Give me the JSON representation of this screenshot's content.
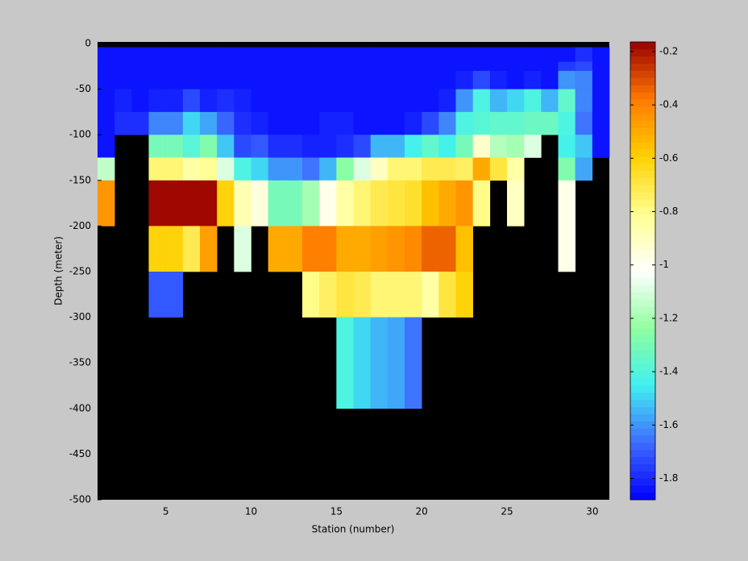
{
  "chart_data": {
    "type": "heatmap",
    "xlabel": "Station (number)",
    "ylabel": "Depth (meter)",
    "xlim": [
      1,
      31
    ],
    "ylim": [
      -500,
      0
    ],
    "xticks": [
      5,
      10,
      15,
      20,
      25,
      30
    ],
    "yticks": [
      0,
      -50,
      -100,
      -150,
      -200,
      -250,
      -300,
      -350,
      -400,
      -450,
      -500
    ],
    "x_edges": [
      1,
      2,
      3,
      4,
      5,
      6,
      7,
      8,
      9,
      10,
      11,
      12,
      13,
      14,
      15,
      16,
      17,
      18,
      19,
      20,
      21,
      22,
      23,
      24,
      25,
      26,
      27,
      28,
      29,
      30,
      31
    ],
    "y_edges": [
      -4,
      -20,
      -30,
      -50,
      -75,
      -100,
      -125,
      -150,
      -200,
      -250,
      -300,
      -400,
      -500
    ],
    "values": [
      [
        -1.85,
        -1.85,
        -1.85,
        -1.85,
        -1.85,
        -1.85,
        -1.85,
        -1.85,
        -1.85,
        -1.85,
        -1.85,
        -1.85,
        -1.85,
        -1.85,
        -1.85,
        -1.85,
        -1.85,
        -1.85,
        -1.85,
        -1.85,
        -1.85,
        -1.85,
        -1.85,
        -1.85,
        -1.85,
        -1.85,
        -1.85,
        -1.85,
        -1.78,
        -1.85
      ],
      [
        -1.85,
        -1.85,
        -1.85,
        -1.85,
        -1.85,
        -1.85,
        -1.85,
        -1.85,
        -1.85,
        -1.85,
        -1.85,
        -1.85,
        -1.85,
        -1.85,
        -1.85,
        -1.85,
        -1.85,
        -1.85,
        -1.85,
        -1.85,
        -1.85,
        -1.85,
        -1.85,
        -1.85,
        -1.85,
        -1.85,
        -1.85,
        -1.75,
        -1.72,
        -1.85
      ],
      [
        -1.85,
        -1.85,
        -1.85,
        -1.85,
        -1.85,
        -1.85,
        -1.85,
        -1.85,
        -1.85,
        -1.85,
        -1.85,
        -1.85,
        -1.85,
        -1.85,
        -1.85,
        -1.85,
        -1.85,
        -1.85,
        -1.85,
        -1.85,
        -1.85,
        -1.8,
        -1.72,
        -1.82,
        -1.85,
        -1.8,
        -1.85,
        -1.6,
        -1.62,
        -1.85
      ],
      [
        -1.85,
        -1.8,
        -1.85,
        -1.82,
        -1.82,
        -1.72,
        -1.82,
        -1.78,
        -1.82,
        -1.85,
        -1.85,
        -1.85,
        -1.85,
        -1.85,
        -1.85,
        -1.85,
        -1.85,
        -1.85,
        -1.85,
        -1.85,
        -1.8,
        -1.6,
        -1.4,
        -1.55,
        -1.48,
        -1.42,
        -1.55,
        -1.35,
        -1.62,
        -1.85
      ],
      [
        -1.85,
        -1.78,
        -1.78,
        -1.62,
        -1.62,
        -1.5,
        -1.57,
        -1.68,
        -1.78,
        -1.8,
        -1.85,
        -1.85,
        -1.85,
        -1.82,
        -1.82,
        -1.85,
        -1.85,
        -1.85,
        -1.82,
        -1.72,
        -1.62,
        -1.42,
        -1.38,
        -1.35,
        -1.35,
        -1.32,
        -1.32,
        -1.4,
        -1.65,
        -1.85
      ],
      [
        -1.85,
        null,
        null,
        -1.3,
        -1.3,
        -1.38,
        -1.28,
        -1.52,
        -1.72,
        -1.7,
        -1.78,
        -1.78,
        -1.82,
        -1.82,
        -1.78,
        -1.72,
        -1.55,
        -1.55,
        -1.45,
        -1.35,
        -1.45,
        -1.3,
        -0.92,
        -1.18,
        -1.2,
        -1.1,
        null,
        -1.45,
        -1.52,
        -1.85
      ],
      [
        -1.15,
        null,
        null,
        -0.78,
        -0.78,
        -0.85,
        -0.82,
        -1.1,
        -1.4,
        -1.48,
        -1.6,
        -1.6,
        -1.65,
        -1.55,
        -1.25,
        -1.1,
        -0.9,
        -0.78,
        -0.78,
        -0.72,
        -0.72,
        -0.75,
        -0.5,
        -0.7,
        -0.85,
        null,
        null,
        -1.28,
        -1.58,
        null
      ],
      [
        -0.45,
        null,
        null,
        -0.18,
        -0.18,
        -0.18,
        -0.18,
        -0.6,
        -0.88,
        -0.95,
        -1.3,
        -1.3,
        -1.2,
        -0.98,
        -0.85,
        -0.78,
        -0.72,
        -0.68,
        -0.65,
        -0.55,
        -0.5,
        -0.45,
        -0.8,
        null,
        -0.9,
        null,
        null,
        -0.98,
        null,
        null
      ],
      [
        null,
        null,
        null,
        -0.6,
        -0.6,
        -0.72,
        -0.48,
        null,
        -1.1,
        null,
        -0.5,
        -0.5,
        -0.38,
        -0.38,
        -0.5,
        -0.5,
        -0.48,
        -0.45,
        -0.42,
        -0.35,
        -0.35,
        -0.55,
        null,
        null,
        null,
        null,
        null,
        -0.98,
        null,
        null
      ],
      [
        null,
        null,
        null,
        -1.7,
        -1.7,
        null,
        null,
        null,
        null,
        null,
        null,
        null,
        -0.8,
        -0.75,
        -0.68,
        -0.72,
        -0.78,
        -0.78,
        -0.78,
        -0.85,
        -0.7,
        -0.6,
        null,
        null,
        null,
        null,
        null,
        null,
        null,
        null
      ],
      [
        null,
        null,
        null,
        null,
        null,
        null,
        null,
        null,
        null,
        null,
        null,
        null,
        null,
        null,
        -1.42,
        -1.5,
        -1.55,
        -1.58,
        -1.65,
        null,
        null,
        null,
        null,
        null,
        null,
        null,
        null,
        null,
        null,
        null
      ],
      [
        null,
        null,
        null,
        null,
        null,
        null,
        null,
        null,
        null,
        null,
        null,
        null,
        null,
        null,
        null,
        null,
        null,
        null,
        null,
        null,
        null,
        null,
        null,
        null,
        null,
        null,
        null,
        null,
        null,
        null
      ]
    ],
    "axes_color": "#000000",
    "colormap": [
      "#0000ff",
      "#3f6cff",
      "#40f0f0",
      "#90ffa0",
      "#ffffff",
      "#ffff90",
      "#ffd000",
      "#ff7a00",
      "#990000"
    ],
    "clim": [
      -1.88,
      -0.164
    ],
    "cticks": [
      -0.2,
      -0.4,
      -0.6,
      -0.8,
      -1,
      -1.2,
      -1.4,
      -1.6,
      -1.8
    ]
  }
}
